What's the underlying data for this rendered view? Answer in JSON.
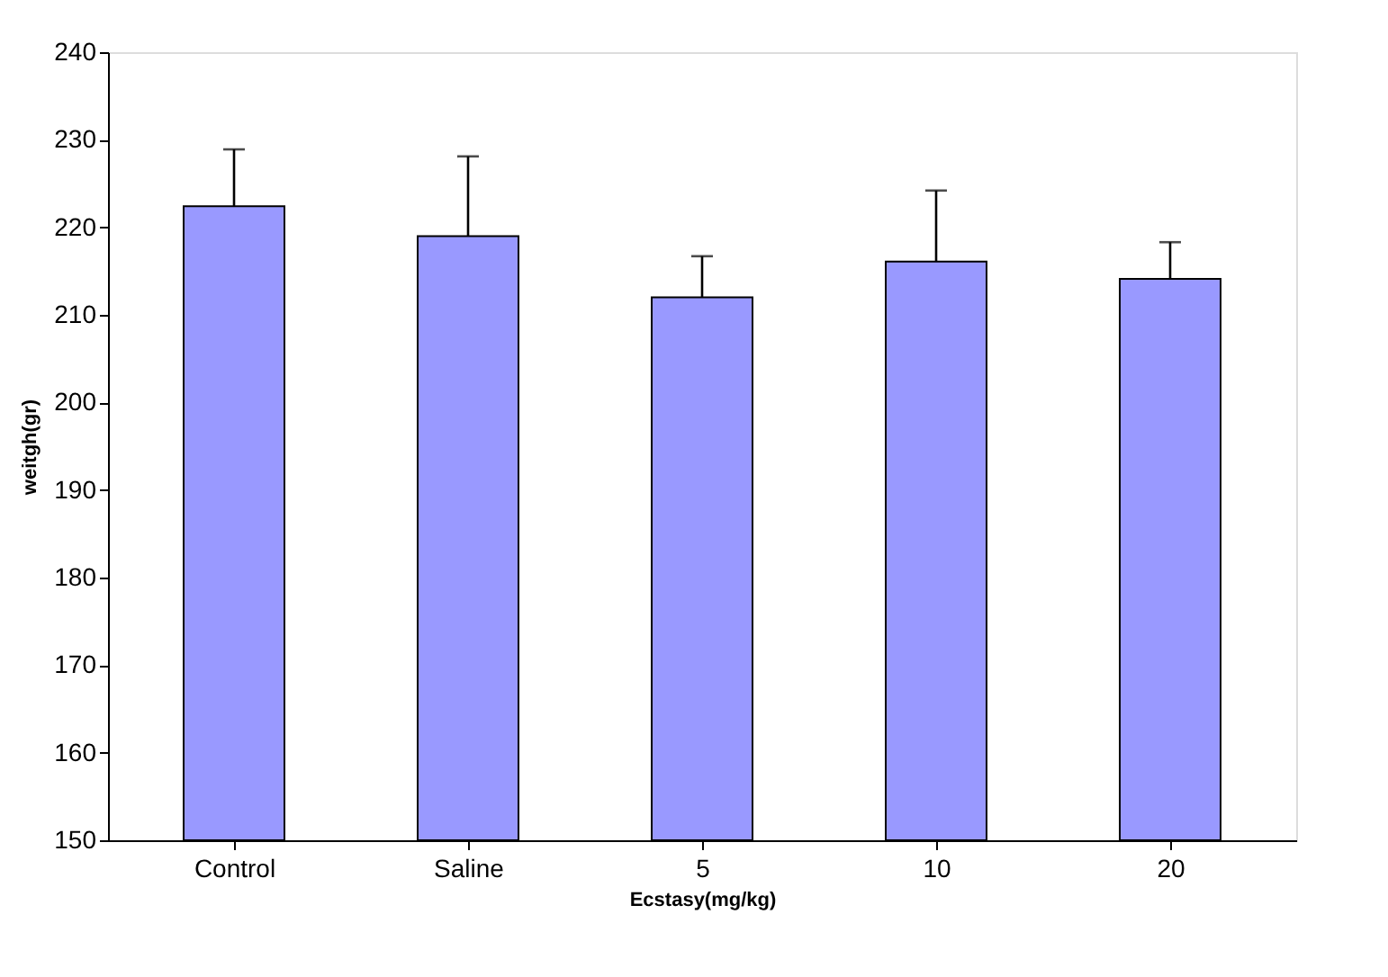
{
  "chart_data": {
    "type": "bar",
    "xlabel": "Ecstasy(mg/kg)",
    "ylabel": "weitgh(gr)",
    "categories": [
      "Control",
      "Saline",
      "5",
      "10",
      "20"
    ],
    "values": [
      222.4,
      219.0,
      212.0,
      216.1,
      214.1
    ],
    "errors": [
      [
        222.4,
        228.9
      ],
      [
        219.0,
        228.1
      ],
      [
        212.0,
        216.7
      ],
      [
        216.1,
        224.2
      ],
      [
        214.1,
        218.3
      ]
    ],
    "color": "#9999ff",
    "ylim": [
      150,
      240
    ],
    "yticks": [
      150,
      160,
      170,
      180,
      190,
      200,
      210,
      220,
      230,
      240
    ],
    "grid": false
  }
}
